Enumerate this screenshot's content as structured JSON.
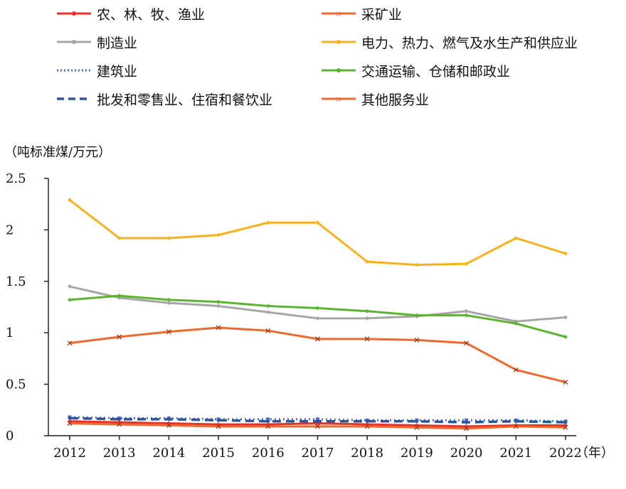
{
  "chart_data": {
    "type": "line",
    "y_unit_label": "（吨标准煤/万元）",
    "x_unit_label": "（年）",
    "categories": [
      "2012",
      "2013",
      "2014",
      "2015",
      "2016",
      "2017",
      "2018",
      "2019",
      "2020",
      "2021",
      "2022"
    ],
    "ylim": [
      0,
      2.5
    ],
    "y_ticks": [
      "0",
      "0.5",
      "1",
      "1.5",
      "2",
      "2.5"
    ],
    "grid": false,
    "legend_position": "top",
    "series": [
      {
        "name": "农、林、牧、渔业",
        "color": "#e8312b",
        "dash": "solid",
        "marker": "diamond",
        "values": [
          0.14,
          0.13,
          0.12,
          0.11,
          0.11,
          0.12,
          0.11,
          0.1,
          0.09,
          0.1,
          0.1
        ]
      },
      {
        "name": "采矿业",
        "color": "#ec6a2e",
        "dash": "solid",
        "marker": "x",
        "values": [
          0.9,
          0.96,
          1.01,
          1.05,
          1.02,
          0.94,
          0.94,
          0.93,
          0.9,
          0.64,
          0.52
        ]
      },
      {
        "name": "制造业",
        "color": "#a6a6a6",
        "dash": "solid",
        "marker": "diamond",
        "values": [
          1.45,
          1.34,
          1.29,
          1.26,
          1.2,
          1.14,
          1.14,
          1.16,
          1.21,
          1.11,
          1.15
        ]
      },
      {
        "name": "电力、热力、燃气及水生产和供应业",
        "color": "#f5b21e",
        "dash": "solid",
        "marker": "diamond",
        "values": [
          2.29,
          1.92,
          1.92,
          1.95,
          2.07,
          2.07,
          1.69,
          1.66,
          1.67,
          1.92,
          1.77
        ]
      },
      {
        "name": "建筑业",
        "color": "#4a6fd4",
        "dash": "dotted",
        "marker": "square",
        "values": [
          0.18,
          0.17,
          0.17,
          0.16,
          0.16,
          0.16,
          0.15,
          0.15,
          0.15,
          0.15,
          0.14
        ]
      },
      {
        "name": "交通运输、仓储和邮政业",
        "color": "#5bb431",
        "dash": "solid",
        "marker": "diamond",
        "values": [
          1.32,
          1.36,
          1.32,
          1.3,
          1.26,
          1.24,
          1.21,
          1.17,
          1.17,
          1.09,
          0.96
        ]
      },
      {
        "name": "批发和零售业、住宿和餐饮业",
        "color": "#2f5597",
        "dash": "dashed",
        "marker": "diamond",
        "values": [
          0.17,
          0.16,
          0.16,
          0.15,
          0.14,
          0.14,
          0.14,
          0.14,
          0.13,
          0.14,
          0.13
        ]
      },
      {
        "name": "其他服务业",
        "color": "#ec6a2e",
        "dash": "solid",
        "marker": "x",
        "values": [
          0.12,
          0.11,
          0.1,
          0.09,
          0.09,
          0.09,
          0.09,
          0.08,
          0.07,
          0.09,
          0.08
        ]
      }
    ]
  }
}
